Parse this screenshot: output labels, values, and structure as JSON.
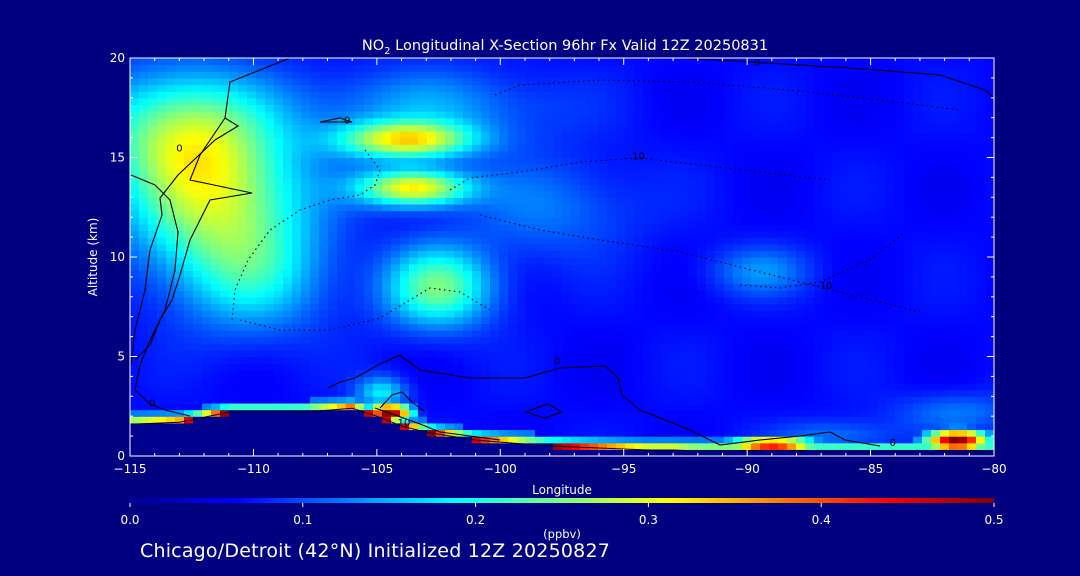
{
  "chart_data": {
    "type": "heatmap",
    "title": {
      "prefix": "NO",
      "sub": "2",
      "suffix": " Longitudinal X-Section 96hr  Fx Valid 12Z 20250831"
    },
    "xlabel": "Longitude",
    "ylabel": "Altitude (km)",
    "xlim": [
      -115,
      -80
    ],
    "ylim": [
      0,
      20
    ],
    "x_ticks": [
      -115,
      -110,
      -105,
      -100,
      -95,
      -90,
      -85,
      -80
    ],
    "x_tick_labels": [
      "−115",
      "−110",
      "−105",
      "−100",
      "−95",
      "−90",
      "−85",
      "−80"
    ],
    "y_ticks": [
      0,
      5,
      10,
      15,
      20
    ],
    "y_tick_labels": [
      "0",
      "5",
      "10",
      "15",
      "20"
    ],
    "colorbar": {
      "label": "(ppbv)",
      "range": [
        0.0,
        0.5
      ],
      "ticks": [
        0.0,
        0.1,
        0.2,
        0.3,
        0.4,
        0.5
      ],
      "tick_labels": [
        "0.0",
        "0.1",
        "0.2",
        "0.3",
        "0.4",
        "0.5"
      ],
      "colors": [
        "#00008f",
        "#0000ff",
        "#0080ff",
        "#00ffff",
        "#80ff80",
        "#ffff00",
        "#ff8000",
        "#ff0000",
        "#800000"
      ]
    },
    "contour_labels": [
      {
        "text": "0",
        "x": -113,
        "y": 15.3
      },
      {
        "text": "0",
        "x": -106.2,
        "y": 16.7
      },
      {
        "text": "0",
        "x": -89.6,
        "y": 19.6
      },
      {
        "text": "10",
        "x": -94.4,
        "y": 14.9
      },
      {
        "text": "10",
        "x": -86.8,
        "y": 8.4
      },
      {
        "text": "0",
        "x": -114.1,
        "y": 2.5
      },
      {
        "text": "0",
        "x": -97.7,
        "y": 4.6
      },
      {
        "text": "10",
        "x": -103.9,
        "y": 1.5
      },
      {
        "text": "0",
        "x": -84.1,
        "y": 0.5
      }
    ],
    "terrain_profile": {
      "lon": [
        -115,
        -113,
        -111,
        -110,
        -109,
        -108,
        -107,
        -106,
        -105,
        -104,
        -103,
        -102,
        -101,
        -100,
        -99,
        -98,
        -97,
        -96,
        -95,
        -94,
        -93,
        -92,
        -91,
        -90,
        -89,
        -88,
        -87,
        -86,
        -85,
        -84,
        -83,
        -82,
        -81,
        -80
      ],
      "alt": [
        1.6,
        1.7,
        2.2,
        2.2,
        2.2,
        2.2,
        2.3,
        2.4,
        2.0,
        1.5,
        1.2,
        1.0,
        0.8,
        0.7,
        0.6,
        0.5,
        0.45,
        0.4,
        0.35,
        0.3,
        0.3,
        0.25,
        0.25,
        0.25,
        0.25,
        0.25,
        0.2,
        0.2,
        0.2,
        0.2,
        0.2,
        0.2,
        0.2,
        0.2
      ]
    },
    "field_features": [
      {
        "lon": -111.5,
        "alt": 13.0,
        "value": 0.26,
        "sx": 3.6,
        "sy": 3.8
      },
      {
        "lon": -113.0,
        "alt": 16.5,
        "value": 0.22,
        "sx": 3.5,
        "sy": 3.0
      },
      {
        "lon": -110.0,
        "alt": 9.0,
        "value": 0.16,
        "sx": 3.0,
        "sy": 3.0
      },
      {
        "lon": -103.8,
        "alt": 15.9,
        "value": 0.3,
        "sx": 2.6,
        "sy": 0.9
      },
      {
        "lon": -103.5,
        "alt": 13.5,
        "value": 0.32,
        "sx": 2.2,
        "sy": 0.9
      },
      {
        "lon": -102.5,
        "alt": 8.5,
        "value": 0.24,
        "sx": 2.2,
        "sy": 2.0
      },
      {
        "lon": -103.0,
        "alt": 17.5,
        "value": 0.14,
        "sx": 5.0,
        "sy": 2.0
      },
      {
        "lon": -98.0,
        "alt": 12.5,
        "value": 0.12,
        "sx": 3.5,
        "sy": 2.5
      },
      {
        "lon": -89.5,
        "alt": 9.3,
        "value": 0.13,
        "sx": 2.0,
        "sy": 1.2
      },
      {
        "lon": -104.8,
        "alt": 3.2,
        "value": 0.18,
        "sx": 1.0,
        "sy": 0.8
      },
      {
        "lon": -81.5,
        "alt": 2.2,
        "value": 0.12,
        "sx": 2.5,
        "sy": 1.0
      },
      {
        "lon": -86.5,
        "alt": 1.0,
        "value": 0.12,
        "sx": 2.5,
        "sy": 0.8
      }
    ],
    "surface_layer": {
      "value": 0.5,
      "thickness_km": 0.6
    },
    "surface_hotspots": [
      {
        "lon": -81.5,
        "alt": 0.8,
        "value": 0.5,
        "sx": 1.4,
        "sy": 0.6
      },
      {
        "lon": -89.0,
        "alt": 0.6,
        "value": 0.45,
        "sx": 2.0,
        "sy": 0.4
      },
      {
        "lon": -104.5,
        "alt": 2.2,
        "value": 0.5,
        "sx": 1.0,
        "sy": 0.5
      }
    ]
  },
  "footer": "Chicago/Detroit (42°N) Initialized 12Z 20250827"
}
